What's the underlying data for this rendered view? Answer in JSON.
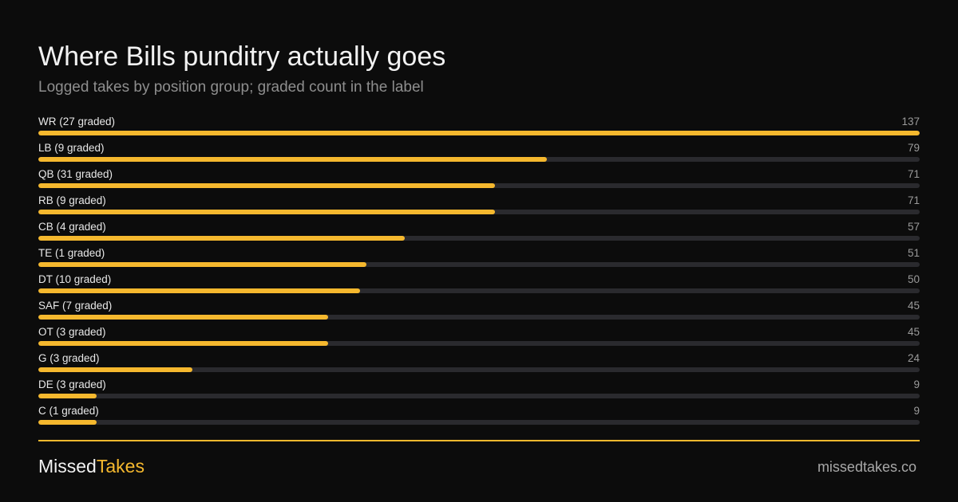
{
  "header": {
    "title": "Where Bills punditry actually goes",
    "subtitle": "Logged takes by position group; graded count in the label"
  },
  "colors": {
    "background": "#0c0c0c",
    "accent": "#f5b82e",
    "track": "#2a2a2e"
  },
  "chart_data": {
    "type": "bar",
    "orientation": "horizontal",
    "title": "Where Bills punditry actually goes",
    "subtitle": "Logged takes by position group; graded count in the label",
    "xlim": [
      0,
      137
    ],
    "grid": false,
    "categories": [
      "WR (27 graded)",
      "LB (9 graded)",
      "QB (31 graded)",
      "RB (9 graded)",
      "CB (4 graded)",
      "TE (1 graded)",
      "DT (10 graded)",
      "SAF (7 graded)",
      "OT (3 graded)",
      "G (3 graded)",
      "DE (3 graded)",
      "C (1 graded)"
    ],
    "values": [
      137,
      79,
      71,
      71,
      57,
      51,
      50,
      45,
      45,
      24,
      9,
      9
    ]
  },
  "footer": {
    "brand_part1": "Missed",
    "brand_part2": "Takes",
    "site": "missedtakes.co"
  }
}
